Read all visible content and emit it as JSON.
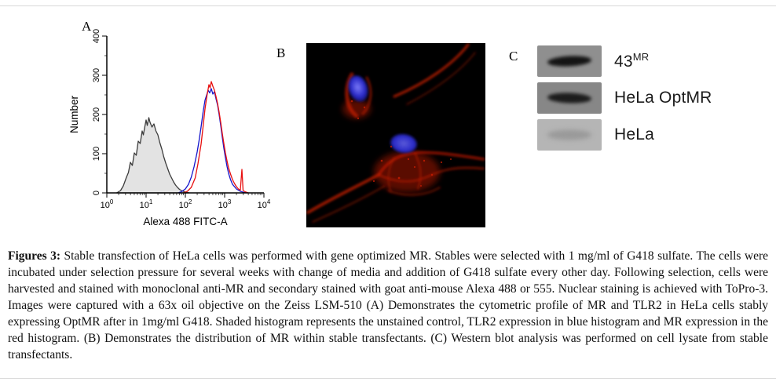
{
  "panels": {
    "a": {
      "label": "A"
    },
    "b": {
      "label": "B",
      "stain_red": "#c81d00",
      "nucleus_blue": "#2a2ac8",
      "description": "confocal image of MR distribution (red) with nuclear stain (blue)"
    },
    "c": {
      "label": "C",
      "blots": [
        {
          "label": "43",
          "label_sup": "MR",
          "bg": "#8f8f8f",
          "band_color": "#141414",
          "band_blur": 2,
          "band_tilt": -3
        },
        {
          "label": "HeLa OptMR",
          "label_sup": "",
          "bg": "#878787",
          "band_color": "#1c1c1c",
          "band_blur": 2,
          "band_tilt": 2
        },
        {
          "label": "HeLa",
          "label_sup": "",
          "bg": "#b5b5b5",
          "band_color": "#9a9a9a",
          "band_blur": 3,
          "band_tilt": 0
        }
      ]
    }
  },
  "caption": {
    "title": "Figures 3:",
    "text": "Stable transfection of HeLa cells was performed with gene optimized MR. Stables were selected with 1 mg/ml of G418 sulfate. The cells were incubated under selection pressure for several weeks with change of media and addition of G418 sulfate every other day. Following selection, cells were harvested and stained with monoclonal anti-MR and secondary stained with goat anti-mouse Alexa 488 or 555. Nuclear staining is achieved with ToPro-3. Images were captured with a 63x oil objective on the Zeiss LSM-510 (A) Demonstrates the cytometric profile of MR and TLR2 in HeLa cells stably expressing OptMR after in 1mg/ml G418. Shaded histogram represents the unstained control, TLR2 expression in blue histogram and MR expression in the red histogram. (B) Demonstrates the distribution of MR within stable transfectants. (C) Western blot analysis was performed on cell lysate from stable transfectants."
  },
  "chart_data": {
    "type": "area",
    "title": "",
    "xlabel": "Alexa 488 FITC-A",
    "ylabel": "Number",
    "x_scale": "log10",
    "x_decades": [
      0,
      4
    ],
    "x_tick_exponents": [
      0,
      1,
      2,
      3,
      4
    ],
    "ylim": [
      0,
      400
    ],
    "y_ticks": [
      0,
      100,
      200,
      300,
      400
    ],
    "grid": false,
    "legend": "none",
    "series": [
      {
        "name": "unstained-control",
        "legend": "unstained control (shaded histogram)",
        "stroke": "#3c3c3c",
        "fill": "#e3e3e3",
        "points": [
          [
            0.25,
            0
          ],
          [
            0.35,
            6
          ],
          [
            0.42,
            18
          ],
          [
            0.5,
            40
          ],
          [
            0.55,
            52
          ],
          [
            0.6,
            78
          ],
          [
            0.65,
            70
          ],
          [
            0.7,
            102
          ],
          [
            0.75,
            96
          ],
          [
            0.8,
            132
          ],
          [
            0.85,
            126
          ],
          [
            0.9,
            158
          ],
          [
            0.93,
            148
          ],
          [
            0.97,
            170
          ],
          [
            1.0,
            186
          ],
          [
            1.03,
            172
          ],
          [
            1.07,
            192
          ],
          [
            1.1,
            180
          ],
          [
            1.15,
            168
          ],
          [
            1.2,
            176
          ],
          [
            1.25,
            158
          ],
          [
            1.3,
            148
          ],
          [
            1.35,
            128
          ],
          [
            1.4,
            112
          ],
          [
            1.45,
            92
          ],
          [
            1.5,
            76
          ],
          [
            1.55,
            62
          ],
          [
            1.6,
            48
          ],
          [
            1.65,
            38
          ],
          [
            1.7,
            28
          ],
          [
            1.75,
            20
          ],
          [
            1.8,
            14
          ],
          [
            1.85,
            9
          ],
          [
            1.9,
            6
          ],
          [
            2.0,
            2
          ],
          [
            2.1,
            0
          ]
        ]
      },
      {
        "name": "TLR2",
        "legend": "TLR2 expression (blue histogram)",
        "stroke": "#1515cc",
        "fill": "none",
        "points": [
          [
            1.82,
            0
          ],
          [
            1.9,
            3
          ],
          [
            2.0,
            10
          ],
          [
            2.08,
            22
          ],
          [
            2.15,
            40
          ],
          [
            2.22,
            66
          ],
          [
            2.3,
            104
          ],
          [
            2.35,
            134
          ],
          [
            2.4,
            168
          ],
          [
            2.45,
            205
          ],
          [
            2.5,
            236
          ],
          [
            2.55,
            252
          ],
          [
            2.58,
            262
          ],
          [
            2.62,
            255
          ],
          [
            2.66,
            266
          ],
          [
            2.7,
            252
          ],
          [
            2.74,
            258
          ],
          [
            2.78,
            240
          ],
          [
            2.82,
            224
          ],
          [
            2.86,
            200
          ],
          [
            2.9,
            172
          ],
          [
            2.94,
            142
          ],
          [
            2.98,
            114
          ],
          [
            3.02,
            90
          ],
          [
            3.06,
            68
          ],
          [
            3.1,
            50
          ],
          [
            3.15,
            34
          ],
          [
            3.2,
            22
          ],
          [
            3.3,
            10
          ],
          [
            3.4,
            4
          ],
          [
            3.5,
            1
          ],
          [
            3.58,
            0
          ]
        ]
      },
      {
        "name": "MR",
        "legend": "MR expression (red histogram)",
        "stroke": "#e81010",
        "fill": "none",
        "points": [
          [
            1.95,
            0
          ],
          [
            2.05,
            4
          ],
          [
            2.15,
            14
          ],
          [
            2.25,
            38
          ],
          [
            2.32,
            74
          ],
          [
            2.4,
            124
          ],
          [
            2.45,
            168
          ],
          [
            2.5,
            214
          ],
          [
            2.55,
            248
          ],
          [
            2.6,
            276
          ],
          [
            2.63,
            268
          ],
          [
            2.66,
            284
          ],
          [
            2.7,
            272
          ],
          [
            2.74,
            262
          ],
          [
            2.78,
            246
          ],
          [
            2.82,
            228
          ],
          [
            2.86,
            206
          ],
          [
            2.9,
            180
          ],
          [
            2.94,
            152
          ],
          [
            2.98,
            126
          ],
          [
            3.02,
            102
          ],
          [
            3.06,
            82
          ],
          [
            3.1,
            64
          ],
          [
            3.15,
            48
          ],
          [
            3.2,
            34
          ],
          [
            3.25,
            24
          ],
          [
            3.3,
            16
          ],
          [
            3.35,
            10
          ],
          [
            3.4,
            7
          ],
          [
            3.44,
            60
          ],
          [
            3.47,
            6
          ],
          [
            3.52,
            3
          ],
          [
            3.6,
            0
          ]
        ]
      }
    ]
  }
}
